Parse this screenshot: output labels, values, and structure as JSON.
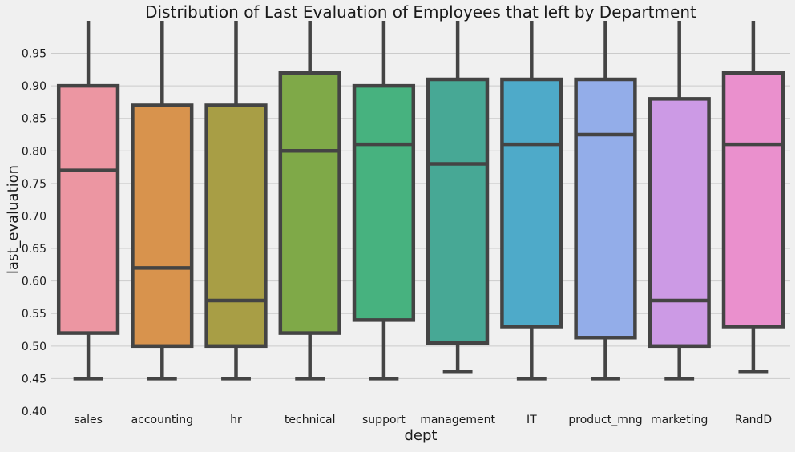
{
  "chart_data": {
    "type": "box",
    "title": "Distribution of Last Evaluation of Employees that left by Department",
    "xlabel": "dept",
    "ylabel": "last_evaluation",
    "ylim": [
      0.4,
      0.995
    ],
    "yticks": [
      "0.40",
      "0.45",
      "0.50",
      "0.55",
      "0.60",
      "0.65",
      "0.70",
      "0.75",
      "0.80",
      "0.85",
      "0.90",
      "0.95"
    ],
    "grid": true,
    "series": [
      {
        "category": "sales",
        "color": "#ec96a2",
        "whisker_low": 0.45,
        "q1": 0.52,
        "median": 0.77,
        "q3": 0.9,
        "whisker_high": 1.0
      },
      {
        "category": "accounting",
        "color": "#d8934d",
        "whisker_low": 0.45,
        "q1": 0.5,
        "median": 0.62,
        "q3": 0.87,
        "whisker_high": 1.0
      },
      {
        "category": "hr",
        "color": "#a89e45",
        "whisker_low": 0.45,
        "q1": 0.5,
        "median": 0.57,
        "q3": 0.87,
        "whisker_high": 1.0
      },
      {
        "category": "technical",
        "color": "#7fa948",
        "whisker_low": 0.45,
        "q1": 0.52,
        "median": 0.8,
        "q3": 0.92,
        "whisker_high": 1.0
      },
      {
        "category": "support",
        "color": "#47b27f",
        "whisker_low": 0.45,
        "q1": 0.54,
        "median": 0.81,
        "q3": 0.9,
        "whisker_high": 1.0
      },
      {
        "category": "management",
        "color": "#47a895",
        "whisker_low": 0.46,
        "q1": 0.505,
        "median": 0.78,
        "q3": 0.91,
        "whisker_high": 1.0
      },
      {
        "category": "IT",
        "color": "#4eaac9",
        "whisker_low": 0.45,
        "q1": 0.53,
        "median": 0.81,
        "q3": 0.91,
        "whisker_high": 1.0
      },
      {
        "category": "product_mng",
        "color": "#93ade9",
        "whisker_low": 0.45,
        "q1": 0.513,
        "median": 0.825,
        "q3": 0.91,
        "whisker_high": 1.0
      },
      {
        "category": "marketing",
        "color": "#cc9ae5",
        "whisker_low": 0.45,
        "q1": 0.5,
        "median": 0.57,
        "q3": 0.88,
        "whisker_high": 1.0
      },
      {
        "category": "RandD",
        "color": "#ea90cd",
        "whisker_low": 0.46,
        "q1": 0.53,
        "median": 0.81,
        "q3": 0.92,
        "whisker_high": 1.0
      }
    ]
  }
}
